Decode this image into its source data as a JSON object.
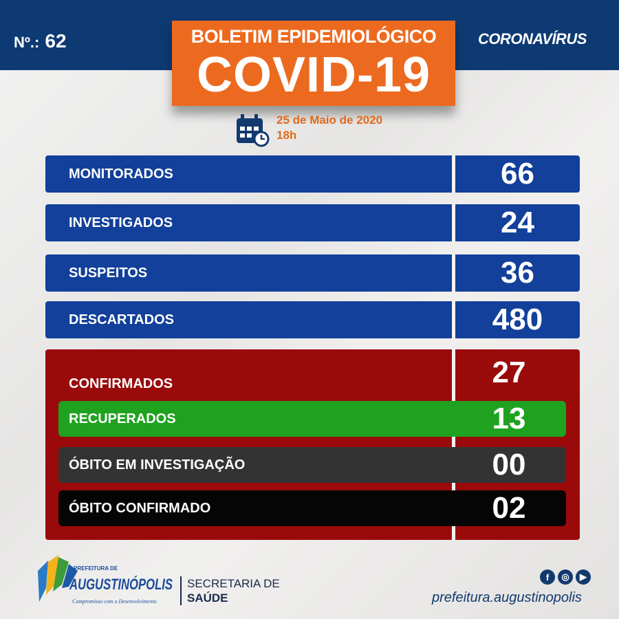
{
  "header": {
    "number_label": "Nº.:",
    "number": "62",
    "brand": "CORONAVÍRUS",
    "title_top": "BOLETIM EPIDEMIOLÓGICO",
    "title_main": "COVID-19",
    "date": "25 de Maio de 2020",
    "time": "18h"
  },
  "stats": [
    {
      "label": "MONITORADOS",
      "value": "66"
    },
    {
      "label": "INVESTIGADOS",
      "value": "24"
    },
    {
      "label": "SUSPEITOS",
      "value": "36"
    },
    {
      "label": "DESCARTADOS",
      "value": "480"
    }
  ],
  "outcomes": {
    "confirmed": {
      "label": "CONFIRMADOS",
      "value": "27"
    },
    "recovered": {
      "label": "RECUPERADOS",
      "value": "13"
    },
    "death_investigation": {
      "label": "ÓBITO EM INVESTIGAÇÃO",
      "value": "00"
    },
    "death_confirmed": {
      "label": "ÓBITO CONFIRMADO",
      "value": "02"
    }
  },
  "footer": {
    "logo_top": "PREFEITURA DE",
    "logo_name": "AUGUSTINÓPOLIS",
    "logo_slogan": "Compromisso com o Desenvolvimento",
    "secretaria_line1": "SECRETARIA DE",
    "secretaria_line2": "SAÚDE",
    "social_url": "prefeitura.augustinopolis"
  },
  "colors": {
    "blue": "#12409a",
    "red": "#9a0a0b",
    "green": "#1fa21f",
    "gray": "#333333",
    "black": "#050505",
    "orange": "#ec6a1f"
  }
}
